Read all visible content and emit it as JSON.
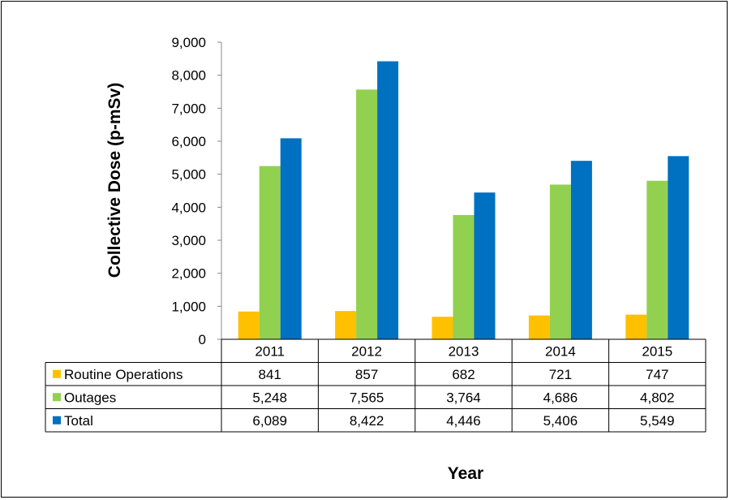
{
  "chart_data": {
    "type": "bar",
    "title": "",
    "xlabel": "Year",
    "ylabel": "Collective Dose (p-mSv)",
    "categories": [
      "2011",
      "2012",
      "2013",
      "2014",
      "2015"
    ],
    "ylim": [
      0,
      9000
    ],
    "yticks": [
      0,
      1000,
      2000,
      3000,
      4000,
      5000,
      6000,
      7000,
      8000,
      9000
    ],
    "ytick_labels": [
      "0",
      "1,000",
      "2,000",
      "3,000",
      "4,000",
      "5,000",
      "6,000",
      "7,000",
      "8,000",
      "9,000"
    ],
    "grid": false,
    "legend": "data-table",
    "series": [
      {
        "name": "Routine Operations",
        "color": "#FFC000",
        "values": [
          841,
          857,
          682,
          721,
          747
        ],
        "value_labels": [
          "841",
          "857",
          "682",
          "721",
          "747"
        ]
      },
      {
        "name": "Outages",
        "color": "#92D050",
        "values": [
          5248,
          7565,
          3764,
          4686,
          4802
        ],
        "value_labels": [
          "5,248",
          "7,565",
          "3,764",
          "4,686",
          "4,802"
        ]
      },
      {
        "name": "Total",
        "color": "#0070C0",
        "values": [
          6089,
          8422,
          4446,
          5406,
          5549
        ],
        "value_labels": [
          "6,089",
          "8,422",
          "4,446",
          "5,406",
          "5,549"
        ]
      }
    ]
  }
}
